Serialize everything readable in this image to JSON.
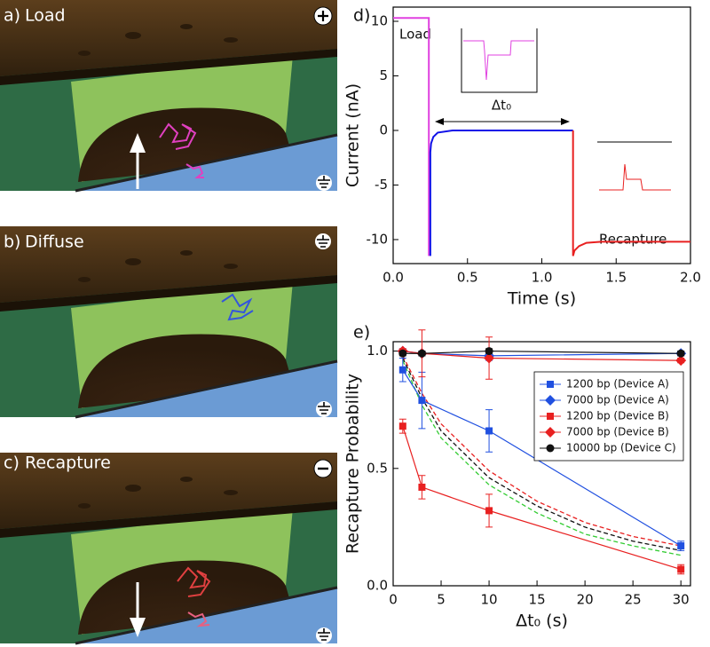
{
  "panels": [
    {
      "letter": "a)",
      "label": "Load"
    },
    {
      "letter": "b)",
      "label": "Diffuse"
    },
    {
      "letter": "c)",
      "label": "Recapture"
    }
  ],
  "chart_data": [
    {
      "type": "line",
      "panel_label": "d)",
      "x_label": "Time (s)",
      "y_label": "Current (nA)",
      "load_label": "Load",
      "recapture_label": "Recapture",
      "interval_label": "Δt₀",
      "xlim": [
        0,
        2
      ],
      "ylim": [
        -12.2,
        11.3
      ],
      "xticks": [
        {
          "value": 0,
          "label": "0.0"
        },
        0.5,
        {
          "value": 1,
          "label": "1.0"
        },
        1.5,
        {
          "value": 2,
          "label": "2.0"
        }
      ],
      "yticks": [
        -10,
        -5,
        0,
        5,
        10
      ],
      "series": [
        {
          "color": "#e040e0",
          "x": [
            0,
            0.24,
            0.24
          ],
          "values": [
            10.3,
            10.3,
            -11.5
          ]
        },
        {
          "color": "#1010e8",
          "x": [
            0.25,
            0.25,
            0.255,
            0.27,
            0.3,
            0.4,
            1.21
          ],
          "values": [
            -11.5,
            -2,
            -1.2,
            -0.6,
            -0.2,
            0,
            0
          ]
        },
        {
          "color": "#e82020",
          "x": [
            1.21,
            1.21,
            1.22,
            1.25,
            1.3,
            1.4,
            2.0
          ],
          "values": [
            0,
            -11.5,
            -11,
            -10.6,
            -10.3,
            -10.2,
            -10.2
          ]
        }
      ]
    },
    {
      "type": "line",
      "panel_label": "e)",
      "x_label": "Δt₀ (s)",
      "y_label": "Recapture Probability",
      "xlim": [
        0,
        31
      ],
      "ylim": [
        0,
        1.04
      ],
      "xticks": [
        0,
        5,
        10,
        15,
        20,
        25,
        30
      ],
      "yticks": [
        {
          "value": 0,
          "label": "0.0"
        },
        0.5,
        {
          "value": 1,
          "label": "1.0"
        }
      ],
      "legend": "upper right",
      "x": [
        1,
        3,
        10,
        30
      ],
      "series": [
        {
          "name": "1200 bp (Device A)",
          "color": "#2050e0",
          "marker": "square",
          "values": [
            0.92,
            0.79,
            0.66,
            0.17
          ],
          "err": [
            0.05,
            0.12,
            0.09,
            0.02
          ]
        },
        {
          "name": "7000 bp (Device A)",
          "color": "#2050e0",
          "marker": "diamond",
          "values": [
            1.0,
            0.99,
            0.98,
            0.99
          ],
          "err": [
            0.01,
            0.01,
            0.02,
            0.01
          ]
        },
        {
          "name": "1200 bp (Device B)",
          "color": "#e82020",
          "marker": "square",
          "values": [
            0.68,
            0.42,
            0.32,
            0.07
          ],
          "err": [
            0.03,
            0.05,
            0.07,
            0.02
          ]
        },
        {
          "name": "7000 bp (Device B)",
          "color": "#e82020",
          "marker": "diamond",
          "values": [
            1.0,
            0.99,
            0.97,
            0.96
          ],
          "err": [
            0.01,
            0.1,
            0.09,
            0.01
          ]
        },
        {
          "name": "10000 bp (Device C)",
          "color": "#111111",
          "marker": "circle",
          "values": [
            0.99,
            0.99,
            1.0,
            0.99
          ],
          "err": [
            0.01,
            0.01,
            0.01,
            0.01
          ]
        }
      ],
      "fit_x": [
        1,
        3,
        5,
        10,
        15,
        20,
        25,
        30
      ],
      "fits": [
        {
          "color": "#e82020",
          "values": [
            0.98,
            0.82,
            0.69,
            0.49,
            0.36,
            0.27,
            0.21,
            0.17
          ]
        },
        {
          "color": "#111111",
          "values": [
            0.97,
            0.8,
            0.66,
            0.46,
            0.34,
            0.25,
            0.19,
            0.15
          ]
        },
        {
          "color": "#33cc33",
          "values": [
            0.96,
            0.77,
            0.63,
            0.43,
            0.31,
            0.22,
            0.17,
            0.13
          ]
        }
      ]
    }
  ]
}
